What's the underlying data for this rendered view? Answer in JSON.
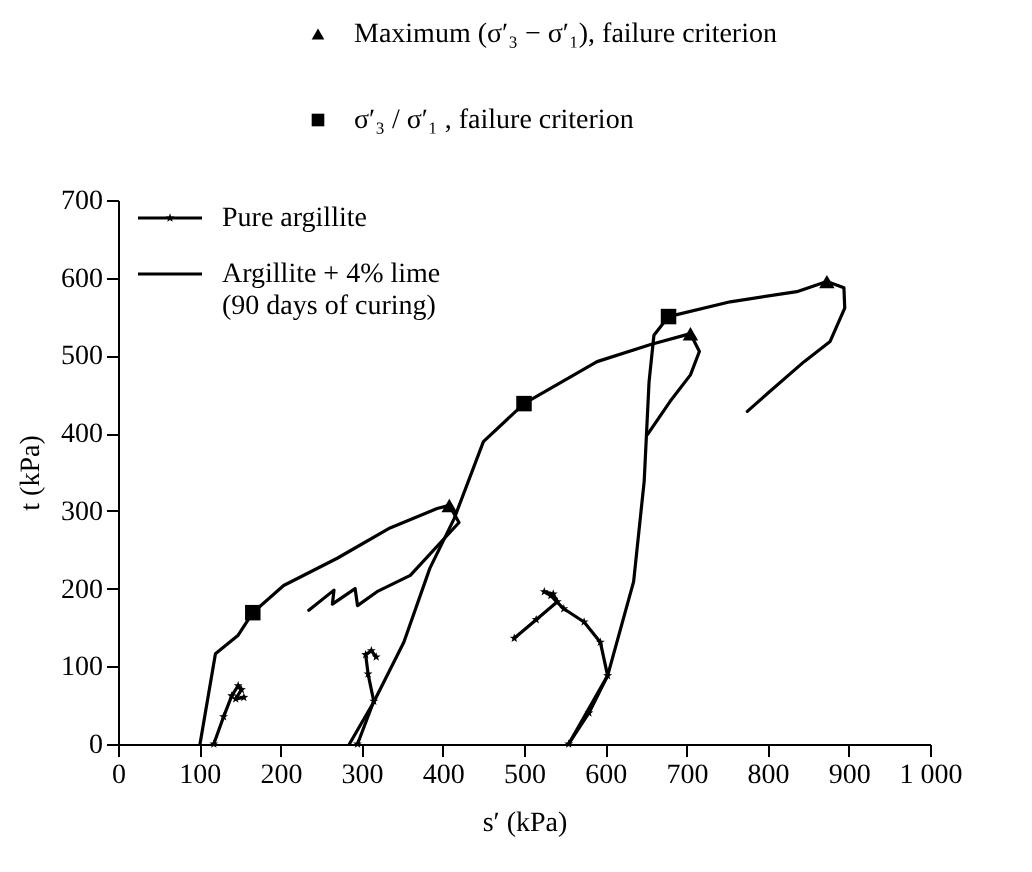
{
  "chart_data": {
    "type": "line",
    "xlabel": "s′ (kPa)",
    "ylabel": "t (kPa)",
    "xlim": [
      0,
      1000
    ],
    "ylim": [
      0,
      700
    ],
    "xticks": [
      0,
      100,
      200,
      300,
      400,
      500,
      600,
      700,
      800,
      900,
      {
        "value": 1000,
        "label": "1 000"
      }
    ],
    "yticks": [
      0,
      100,
      200,
      300,
      400,
      500,
      600,
      700
    ],
    "grid": false,
    "legend": "top left",
    "series": [
      {
        "name": "Pure argillite",
        "marker": "star",
        "color": "#000000",
        "x": [
          118,
          130,
          140,
          148,
          152,
          145,
          155
        ],
        "values": [
          0,
          35,
          62,
          75,
          70,
          58,
          60
        ]
      },
      {
        "marker": "star",
        "color": "#000000",
        "x": [
          295,
          315,
          308,
          305,
          312,
          318
        ],
        "values": [
          0,
          55,
          90,
          115,
          120,
          112
        ]
      },
      {
        "marker": "star",
        "color": "#000000",
        "x": [
          555,
          580,
          603,
          594,
          574,
          549,
          533,
          525,
          536,
          541,
          515,
          488
        ],
        "values": [
          0,
          40,
          88,
          131,
          157,
          174,
          191,
          196,
          193,
          183,
          160,
          136
        ]
      },
      {
        "name": "Argillite + 4% lime\n(90 days of curing)",
        "color": "#000000",
        "x": [
          101,
          120,
          148,
          166,
          204,
          270,
          335,
          393,
          408,
          420,
          360,
          319,
          295,
          292,
          264,
          266,
          235
        ],
        "values": [
          0,
          116,
          140,
          169,
          204,
          239,
          278,
          303,
          307,
          285,
          217,
          196,
          178,
          200,
          180,
          198,
          172
        ]
      },
      {
        "color": "#000000",
        "x": [
          285,
          315,
          352,
          384,
          414,
          450,
          500,
          590,
          656,
          705,
          716,
          705,
          680,
          652
        ],
        "values": [
          0,
          54,
          131,
          226,
          290,
          389,
          438,
          492,
          514,
          528,
          505,
          475,
          441,
          398
        ]
      },
      {
        "color": "#000000",
        "x": [
          555,
          603,
          635,
          648,
          654,
          660,
          678,
          754,
          836,
          873,
          894,
          895,
          877,
          845,
          803,
          775
        ],
        "values": [
          0,
          88,
          209,
          338,
          466,
          526,
          550,
          569,
          582,
          595,
          587,
          561,
          518,
          492,
          454,
          428
        ]
      },
      {
        "name": "Maximum (σ′₃ − σ′₁), failure criterion",
        "type": "scatter",
        "marker": "triangle",
        "color": "#000000",
        "x": [
          408,
          705,
          873
        ],
        "values": [
          307,
          528,
          595
        ]
      },
      {
        "name": "σ′₃ / σ′₁ , failure criterion",
        "type": "scatter",
        "marker": "square",
        "color": "#000000",
        "x": [
          166,
          500,
          678
        ],
        "values": [
          169,
          438,
          550
        ]
      }
    ]
  }
}
